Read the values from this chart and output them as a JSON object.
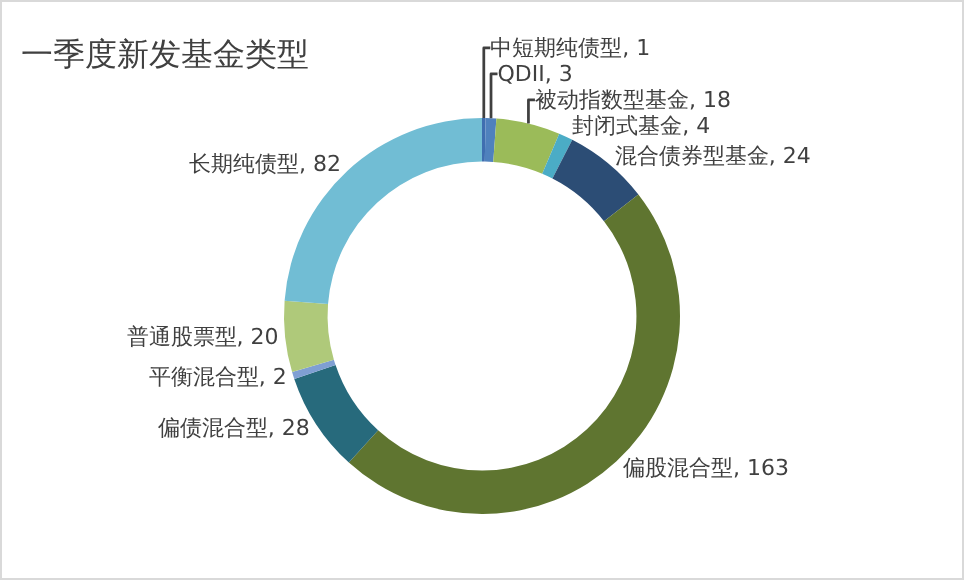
{
  "chart_data": {
    "type": "donut",
    "title": "一季度新发基金类型",
    "categories": [
      "中短期纯债型",
      "QDII",
      "被动指数型基金",
      "封闭式基金",
      "混合债券型基金",
      "偏股混合型",
      "偏债混合型",
      "平衡混合型",
      "普通股票型",
      "长期纯债型"
    ],
    "values": [
      1,
      3,
      18,
      4,
      24,
      163,
      28,
      2,
      20,
      82
    ],
    "colors": [
      "#3f6eb0",
      "#4f81bd",
      "#9bbb59",
      "#4bacc6",
      "#2c4d75",
      "#5f7530",
      "#276a7c",
      "#7f9fd3",
      "#afc97a",
      "#71bdd4"
    ],
    "value_labels": [
      ", 1",
      ", 3",
      ", 18",
      ", 4",
      ", 24",
      ", 163",
      ", 28",
      ", 2",
      ", 20",
      ", 82"
    ]
  }
}
